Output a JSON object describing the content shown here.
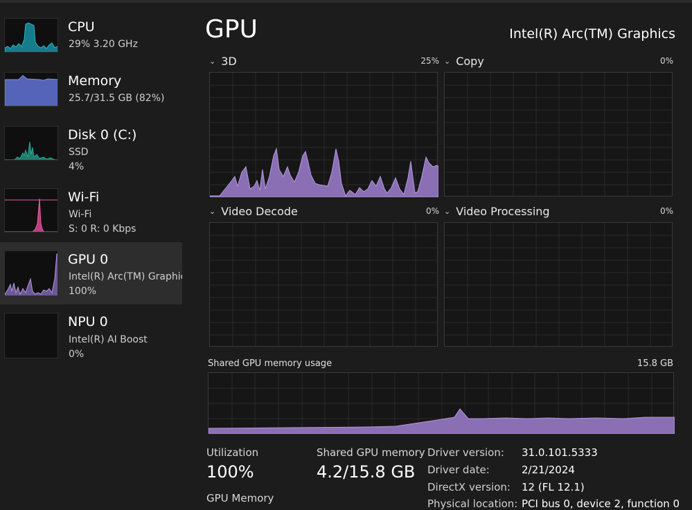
{
  "sidebar": {
    "items": [
      {
        "title": "CPU",
        "line1": "29%  3.20 GHz",
        "line2": "",
        "color": "#2fb5c5",
        "active": false
      },
      {
        "title": "Memory",
        "line1": "25.7/31.5 GB (82%)",
        "line2": "",
        "color": "#6b7fd6",
        "active": false
      },
      {
        "title": "Disk 0 (C:)",
        "line1": "SSD",
        "line2": "4%",
        "color": "#2aa893",
        "active": false
      },
      {
        "title": "Wi-Fi",
        "line1": "Wi-Fi",
        "line2": "S: 0  R: 0 Kbps",
        "color": "#e45fa4",
        "active": false
      },
      {
        "title": "GPU 0",
        "line1": "Intel(R) Arc(TM) Graphics",
        "line2": "100%",
        "color": "#a07fd0",
        "active": true
      },
      {
        "title": "NPU 0",
        "line1": "Intel(R) AI Boost",
        "line2": "0%",
        "color": "#777777",
        "active": false
      }
    ]
  },
  "header": {
    "title": "GPU",
    "adapter_name": "Intel(R) Arc(TM) Graphics"
  },
  "engines": [
    {
      "label": "3D",
      "percent": "25%"
    },
    {
      "label": "Copy",
      "percent": "0%"
    },
    {
      "label": "Video Decode",
      "percent": "0%"
    },
    {
      "label": "Video Processing",
      "percent": "0%"
    }
  ],
  "shared_memory": {
    "label": "Shared GPU memory usage",
    "max": "15.8 GB"
  },
  "stats": {
    "utilization_label": "Utilization",
    "utilization_value": "100%",
    "shared_label": "Shared GPU memory",
    "shared_value": "4.2/15.8 GB",
    "gpu_memory_label": "GPU Memory"
  },
  "info": [
    {
      "label": "Driver version:",
      "value": "31.0.101.5333"
    },
    {
      "label": "Driver date:",
      "value": "2/21/2024"
    },
    {
      "label": "DirectX version:",
      "value": "12 (FL 12.1)"
    },
    {
      "label": "Physical location:",
      "value": "PCI bus 0, device 2, function 0"
    }
  ],
  "colors": {
    "gpu_fill": "#8a6fb5",
    "gpu_stroke": "#b49ae0",
    "grid": "#2e2e2e"
  }
}
